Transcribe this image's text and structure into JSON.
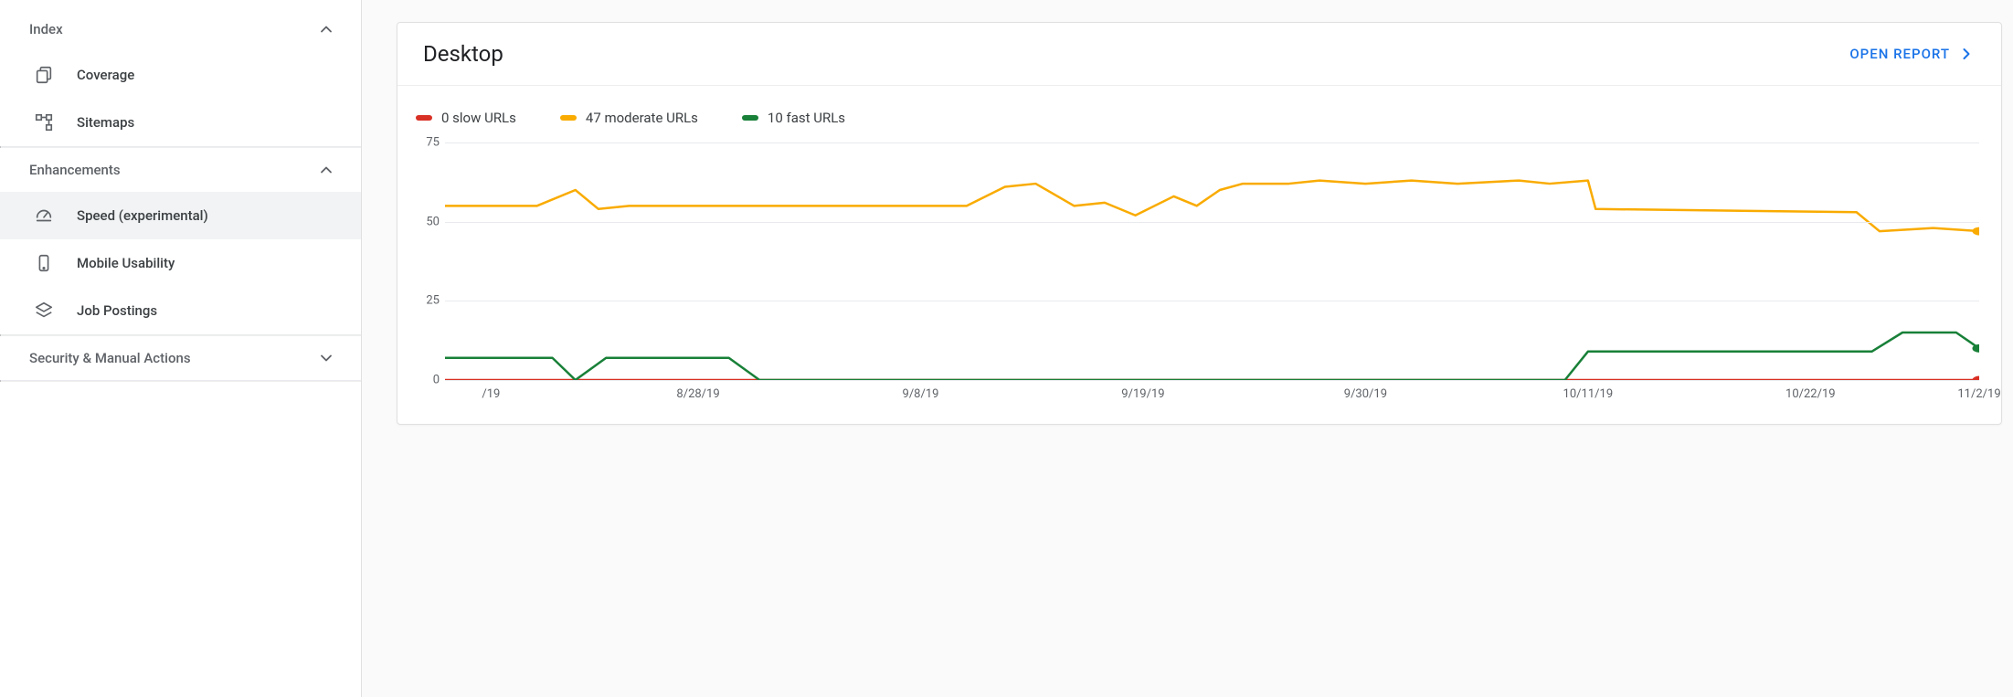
{
  "sidebar": {
    "sections": [
      {
        "key": "index",
        "label": "Index",
        "collapsed": false,
        "items": [
          {
            "key": "coverage",
            "label": "Coverage"
          },
          {
            "key": "sitemaps",
            "label": "Sitemaps"
          }
        ]
      },
      {
        "key": "enhancements",
        "label": "Enhancements",
        "collapsed": false,
        "items": [
          {
            "key": "speed",
            "label": "Speed (experimental)",
            "active": true
          },
          {
            "key": "mobile-usability",
            "label": "Mobile Usability"
          },
          {
            "key": "job-postings",
            "label": "Job Postings"
          }
        ]
      },
      {
        "key": "security",
        "label": "Security & Manual Actions",
        "collapsed": true,
        "items": []
      }
    ]
  },
  "card": {
    "title": "Desktop",
    "open_report_label": "OPEN REPORT"
  },
  "chart": {
    "type": "line",
    "ylim": [
      0,
      75
    ],
    "yticks": [
      0,
      25,
      50,
      75
    ],
    "grid_color": "#e8eaed",
    "background_color": "#ffffff",
    "xticks": [
      {
        "pos": 0.03,
        "label": "/19"
      },
      {
        "pos": 0.165,
        "label": "8/28/19"
      },
      {
        "pos": 0.31,
        "label": "9/8/19"
      },
      {
        "pos": 0.455,
        "label": "9/19/19"
      },
      {
        "pos": 0.6,
        "label": "9/30/19"
      },
      {
        "pos": 0.745,
        "label": "10/11/19"
      },
      {
        "pos": 0.89,
        "label": "10/22/19"
      },
      {
        "pos": 1.0,
        "label": "11/2/19"
      }
    ],
    "legend": [
      {
        "key": "slow",
        "label": "0 slow URLs",
        "color": "#d93025"
      },
      {
        "key": "moderate",
        "label": "47 moderate URLs",
        "color": "#f9ab00"
      },
      {
        "key": "fast",
        "label": "10 fast URLs",
        "color": "#188038"
      }
    ],
    "series": {
      "slow": {
        "color": "#d93025",
        "line_width": 2.5,
        "end_marker_radius": 4.5,
        "points": [
          {
            "x": 0.0,
            "y": 0
          },
          {
            "x": 1.0,
            "y": 0
          }
        ]
      },
      "moderate": {
        "color": "#f9ab00",
        "line_width": 2.5,
        "end_marker_radius": 4.5,
        "points": [
          {
            "x": 0.0,
            "y": 55
          },
          {
            "x": 0.06,
            "y": 55
          },
          {
            "x": 0.085,
            "y": 60
          },
          {
            "x": 0.1,
            "y": 54
          },
          {
            "x": 0.12,
            "y": 55
          },
          {
            "x": 0.34,
            "y": 55
          },
          {
            "x": 0.365,
            "y": 61
          },
          {
            "x": 0.385,
            "y": 62
          },
          {
            "x": 0.41,
            "y": 55
          },
          {
            "x": 0.43,
            "y": 56
          },
          {
            "x": 0.45,
            "y": 52
          },
          {
            "x": 0.475,
            "y": 58
          },
          {
            "x": 0.49,
            "y": 55
          },
          {
            "x": 0.505,
            "y": 60
          },
          {
            "x": 0.52,
            "y": 62
          },
          {
            "x": 0.55,
            "y": 62
          },
          {
            "x": 0.57,
            "y": 63
          },
          {
            "x": 0.6,
            "y": 62
          },
          {
            "x": 0.63,
            "y": 63
          },
          {
            "x": 0.66,
            "y": 62
          },
          {
            "x": 0.7,
            "y": 63
          },
          {
            "x": 0.72,
            "y": 62
          },
          {
            "x": 0.745,
            "y": 63
          },
          {
            "x": 0.75,
            "y": 54
          },
          {
            "x": 0.92,
            "y": 53
          },
          {
            "x": 0.935,
            "y": 47
          },
          {
            "x": 0.97,
            "y": 48
          },
          {
            "x": 1.0,
            "y": 47
          }
        ]
      },
      "fast": {
        "color": "#188038",
        "line_width": 2.5,
        "end_marker_radius": 4.5,
        "points": [
          {
            "x": 0.0,
            "y": 7
          },
          {
            "x": 0.07,
            "y": 7
          },
          {
            "x": 0.085,
            "y": 0
          },
          {
            "x": 0.105,
            "y": 7
          },
          {
            "x": 0.185,
            "y": 7
          },
          {
            "x": 0.205,
            "y": 0
          },
          {
            "x": 0.73,
            "y": 0
          },
          {
            "x": 0.745,
            "y": 9
          },
          {
            "x": 0.93,
            "y": 9
          },
          {
            "x": 0.95,
            "y": 15
          },
          {
            "x": 0.985,
            "y": 15
          },
          {
            "x": 1.0,
            "y": 10
          }
        ]
      }
    }
  },
  "colors": {
    "link": "#1a73e8",
    "text_secondary": "#5f6368",
    "divider": "#e8eaed"
  }
}
